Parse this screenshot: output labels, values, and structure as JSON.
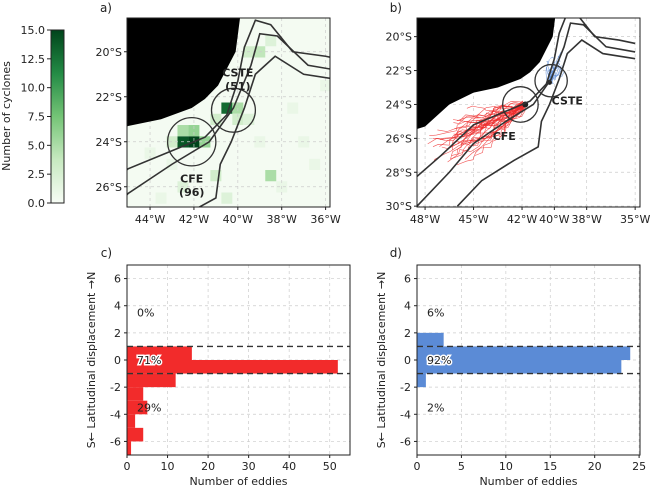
{
  "colorbar": {
    "label": "Number of cyclones",
    "range": [
      0,
      15
    ],
    "ticks": [
      "0.0",
      "2.5",
      "5.0",
      "7.5",
      "10.0",
      "12.5",
      "15.0"
    ],
    "colormap": "Greens"
  },
  "chart_data": [
    {
      "panel": "a)",
      "type": "heatmap",
      "x_ticks": [
        "44°W",
        "42°W",
        "40°W",
        "38°W",
        "36°W"
      ],
      "y_ticks": [
        "20°S",
        "22°S",
        "24°S",
        "26°S"
      ],
      "xlim": [
        -45.05,
        -35.8
      ],
      "ylim": [
        -26.9,
        -18.5
      ],
      "annotations": [
        {
          "name": "CFE",
          "count": "(96)"
        },
        {
          "name": "CSTE",
          "count": "(51)"
        }
      ],
      "cells": [
        {
          "lon": -42.5,
          "lat": -24,
          "count": 14
        },
        {
          "lon": -42,
          "lat": -24,
          "count": 15
        },
        {
          "lon": -41.5,
          "lat": -24,
          "count": 6
        },
        {
          "lon": -42.5,
          "lat": -23.5,
          "count": 5
        },
        {
          "lon": -42,
          "lat": -23.5,
          "count": 6
        },
        {
          "lon": -43,
          "lat": -24,
          "count": 3
        },
        {
          "lon": -40.5,
          "lat": -22.5,
          "count": 13
        },
        {
          "lon": -40,
          "lat": -22.5,
          "count": 5
        },
        {
          "lon": -40,
          "lat": -23,
          "count": 3
        },
        {
          "lon": -39.5,
          "lat": -23,
          "count": 2
        },
        {
          "lon": -41,
          "lat": -23,
          "count": 3
        },
        {
          "lon": -39,
          "lat": -20,
          "count": 4
        },
        {
          "lon": -39.5,
          "lat": -20,
          "count": 3
        },
        {
          "lon": -38.5,
          "lat": -19.5,
          "count": 2
        },
        {
          "lon": -38.5,
          "lat": -25.5,
          "count": 5
        },
        {
          "lon": -41,
          "lat": -25.5,
          "count": 3
        },
        {
          "lon": -42.5,
          "lat": -26,
          "count": 2
        },
        {
          "lon": -36,
          "lat": -21.5,
          "count": 1
        },
        {
          "lon": -37,
          "lat": -24,
          "count": 1
        },
        {
          "lon": -44,
          "lat": -24.5,
          "count": 1
        },
        {
          "lon": -43.5,
          "lat": -26.5,
          "count": 1
        },
        {
          "lon": -38,
          "lat": -26,
          "count": 1
        },
        {
          "lon": -36.5,
          "lat": -25,
          "count": 1
        },
        {
          "lon": -39,
          "lat": -24,
          "count": 1
        },
        {
          "lon": -40.5,
          "lat": -26.5,
          "count": 2
        },
        {
          "lon": -37.5,
          "lat": -22.5,
          "count": 1
        },
        {
          "lon": -43,
          "lat": -25,
          "count": 1
        }
      ]
    },
    {
      "panel": "b)",
      "type": "line",
      "x_ticks": [
        "48°W",
        "45°W",
        "42°W",
        "40°W",
        "38°W",
        "35°W"
      ],
      "y_ticks": [
        "20°S",
        "22°S",
        "24°S",
        "26°S",
        "28°S",
        "30°S"
      ],
      "series": [
        {
          "name": "CFE",
          "color": "#ee2a2a"
        },
        {
          "name": "CSTE",
          "color": "#5b8bd6"
        }
      ]
    },
    {
      "panel": "c)",
      "type": "bar",
      "orientation": "horizontal",
      "xlabel": "Number of eddies",
      "ylabel": "S← Latitudinal displacement →N",
      "xlim": [
        0,
        55
      ],
      "ylim": [
        -7,
        7
      ],
      "grid": true,
      "x_ticks": [
        "0",
        "10",
        "20",
        "30",
        "40",
        "50"
      ],
      "y_ticks": [
        "-6",
        "-4",
        "-2",
        "0",
        "2",
        "4",
        "6"
      ],
      "bins": [
        [
          1,
          0
        ],
        [
          0,
          -1
        ],
        [
          -1,
          -2
        ],
        [
          -2,
          -3
        ],
        [
          -3,
          -4
        ],
        [
          -4,
          -5
        ],
        [
          -5,
          -6
        ],
        [
          -6,
          -7
        ]
      ],
      "values": [
        16,
        52,
        12,
        4,
        5,
        2,
        4,
        1
      ],
      "color": "#f22b2b",
      "thresholds": [
        1,
        -1
      ],
      "percent_labels": [
        {
          "text": "0%",
          "y": 3.5
        },
        {
          "text": "71%",
          "y": 0
        },
        {
          "text": "29%",
          "y": -3.5
        }
      ]
    },
    {
      "panel": "d)",
      "type": "bar",
      "orientation": "horizontal",
      "xlabel": "Number of eddies",
      "ylabel": "S← Latitudinal displacement →N",
      "xlim": [
        0,
        25.1
      ],
      "ylim": [
        -7,
        7
      ],
      "grid": true,
      "x_ticks": [
        "0",
        "5",
        "10",
        "15",
        "20",
        "25"
      ],
      "y_ticks": [
        "-6",
        "-4",
        "-2",
        "0",
        "2",
        "4",
        "6"
      ],
      "bins": [
        [
          2,
          1
        ],
        [
          1,
          0
        ],
        [
          0,
          -1
        ],
        [
          -1,
          -2
        ]
      ],
      "values": [
        3,
        24,
        23,
        1
      ],
      "color": "#5b8bd6",
      "thresholds": [
        1,
        -1
      ],
      "percent_labels": [
        {
          "text": "6%",
          "y": 3.5
        },
        {
          "text": "92%",
          "y": 0
        },
        {
          "text": "2%",
          "y": -3.5
        }
      ]
    }
  ]
}
